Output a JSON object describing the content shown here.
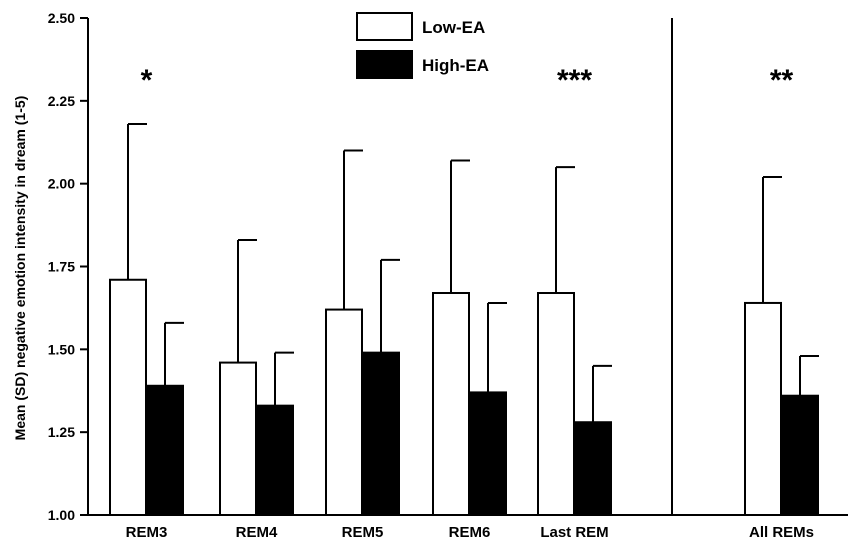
{
  "chart_data": {
    "type": "bar",
    "title": "",
    "xlabel": "",
    "ylabel": "Mean (SD) negative emotion intensity in dream (1-5)",
    "ylim": [
      1.0,
      2.5
    ],
    "yticks": [
      "1.00",
      "1.25",
      "1.50",
      "1.75",
      "2.00",
      "2.25",
      "2.50"
    ],
    "ytick_values": [
      1.0,
      1.25,
      1.5,
      1.75,
      2.0,
      2.25,
      2.5
    ],
    "categories": [
      "REM3",
      "REM4",
      "REM5",
      "REM6",
      "Last REM",
      "All REMs"
    ],
    "series": [
      {
        "name": "Low-EA",
        "color": "#ffffff",
        "values": [
          1.71,
          1.46,
          1.62,
          1.67,
          1.67,
          1.64
        ],
        "sd_upper": [
          2.18,
          1.83,
          2.1,
          2.07,
          2.05,
          2.02
        ]
      },
      {
        "name": "High-EA",
        "color": "#000000",
        "values": [
          1.39,
          1.33,
          1.49,
          1.37,
          1.28,
          1.36
        ],
        "sd_upper": [
          1.58,
          1.49,
          1.77,
          1.64,
          1.45,
          1.48
        ]
      }
    ],
    "significance": [
      "*",
      "",
      "",
      "",
      "***",
      "**"
    ],
    "legend_position": "top-center",
    "grid": false,
    "divider_before_category": 5
  }
}
